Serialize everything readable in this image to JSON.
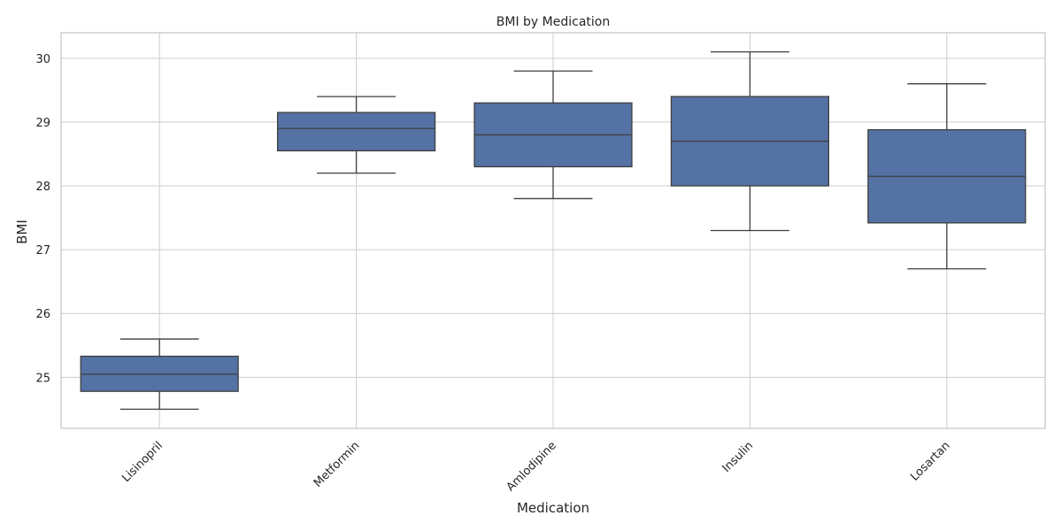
{
  "chart_data": {
    "type": "box",
    "title": "BMI by Medication",
    "xlabel": "Medication",
    "ylabel": "BMI",
    "ylim": [
      24.2,
      30.4
    ],
    "yticks": [
      25,
      26,
      27,
      28,
      29,
      30
    ],
    "grid": true,
    "color": "#5572a4",
    "categories": [
      "Lisinopril",
      "Metformin",
      "Amlodipine",
      "Insulin",
      "Losartan"
    ],
    "boxes": [
      {
        "category": "Lisinopril",
        "whisker_low": 24.5,
        "q1": 24.78,
        "median": 25.05,
        "q3": 25.33,
        "whisker_high": 25.6
      },
      {
        "category": "Metformin",
        "whisker_low": 28.2,
        "q1": 28.55,
        "median": 28.9,
        "q3": 29.15,
        "whisker_high": 29.4
      },
      {
        "category": "Amlodipine",
        "whisker_low": 27.8,
        "q1": 28.3,
        "median": 28.8,
        "q3": 29.3,
        "whisker_high": 29.8
      },
      {
        "category": "Insulin",
        "whisker_low": 27.3,
        "q1": 28.0,
        "median": 28.7,
        "q3": 29.4,
        "whisker_high": 30.1
      },
      {
        "category": "Losartan",
        "whisker_low": 26.7,
        "q1": 27.42,
        "median": 28.15,
        "q3": 28.88,
        "whisker_high": 29.6
      }
    ]
  }
}
